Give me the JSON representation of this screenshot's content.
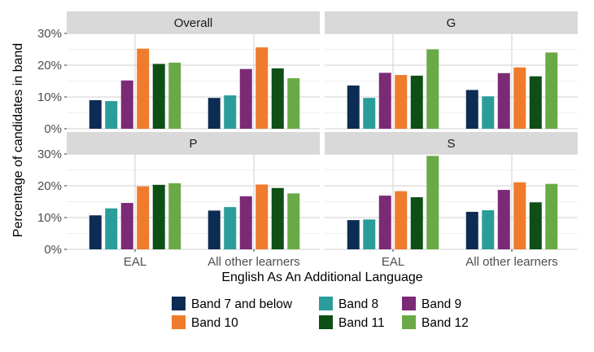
{
  "chart_data": {
    "type": "bar",
    "xlabel": "English As An Additional Language",
    "ylabel": "Percentage of candidates in band",
    "ylim": [
      0,
      30
    ],
    "y_ticks": [
      "0%",
      "10%",
      "20%",
      "30%"
    ],
    "categories": [
      "EAL",
      "All other learners"
    ],
    "series_names": [
      "Band 7 and below",
      "Band 8",
      "Band 9",
      "Band 10",
      "Band 11",
      "Band 12"
    ],
    "colors": [
      "#0d2c54",
      "#2a9d9b",
      "#7b2a76",
      "#ef7b2d",
      "#0d4f14",
      "#6aaa46"
    ],
    "grid": true,
    "legend_position": "bottom",
    "panels": [
      {
        "title": "Overall",
        "values": [
          [
            9.0,
            8.7,
            15.2,
            25.2,
            20.4,
            20.8
          ],
          [
            9.7,
            10.5,
            18.8,
            25.6,
            19.0,
            15.9
          ]
        ]
      },
      {
        "title": "G",
        "values": [
          [
            13.6,
            9.7,
            17.6,
            16.9,
            16.7,
            25.0
          ],
          [
            12.2,
            10.2,
            17.5,
            19.3,
            16.5,
            24.0
          ]
        ]
      },
      {
        "title": "P",
        "values": [
          [
            10.7,
            12.9,
            14.6,
            19.8,
            20.3,
            20.8
          ],
          [
            12.2,
            13.3,
            16.7,
            20.4,
            19.3,
            17.6
          ]
        ]
      },
      {
        "title": "S",
        "values": [
          [
            9.2,
            9.4,
            16.9,
            18.3,
            16.4,
            29.4
          ],
          [
            11.8,
            12.3,
            18.7,
            21.1,
            14.8,
            20.6
          ]
        ]
      }
    ]
  }
}
